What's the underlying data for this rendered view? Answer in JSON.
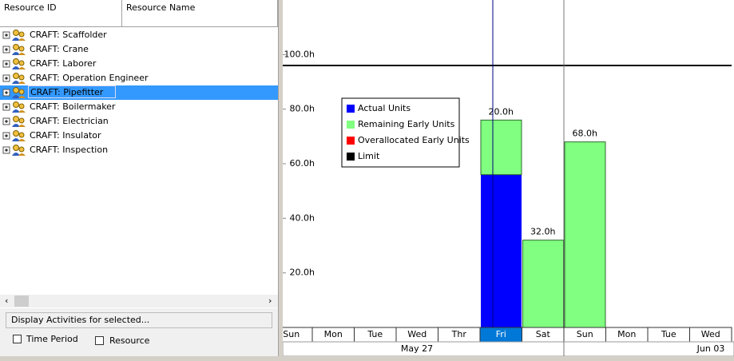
{
  "columns": [
    "Resource ID",
    "Resource Name"
  ],
  "resources": [
    "CRAFT: Scaffolder",
    "CRAFT: Crane",
    "CRAFT: Laborer",
    "CRAFT: Operation Engineer",
    "CRAFT: Pipefitter",
    "CRAFT: Boilermaker",
    "CRAFT: Electrician",
    "CRAFT: Insulator",
    "CRAFT: Inspection"
  ],
  "selected_resource": 4,
  "footer": {
    "title": "Display Activities for selected...",
    "options": [
      "Time Period",
      "Resource"
    ]
  },
  "chart_data": {
    "type": "bar",
    "stacked": true,
    "categories": [
      "Sun",
      "Mon",
      "Tue",
      "Wed",
      "Thr",
      "Fri",
      "Sat",
      "Sun",
      "Mon",
      "Tue",
      "Wed"
    ],
    "selected_category": 5,
    "timescale": [
      "May 27",
      "Jun 03"
    ],
    "ylim": [
      0,
      120
    ],
    "yticks": [
      {
        "value": 20,
        "label": "20.0h"
      },
      {
        "value": 40,
        "label": "40.0h"
      },
      {
        "value": 60,
        "label": "60.0h"
      },
      {
        "value": 80,
        "label": "80.0h"
      },
      {
        "value": 100,
        "label": "100.0h"
      }
    ],
    "series": [
      {
        "name": "Actual Units",
        "color": "#0000ff",
        "values": [
          null,
          null,
          null,
          null,
          null,
          56,
          null,
          null,
          null,
          null,
          null
        ]
      },
      {
        "name": "Remaining Early Units",
        "color": "#80ff80",
        "values": [
          null,
          null,
          null,
          null,
          null,
          20,
          32,
          68,
          null,
          null,
          null
        ],
        "value_labels": [
          null,
          null,
          null,
          null,
          null,
          "20.0h",
          "32.0h",
          "68.0h",
          null,
          null,
          null
        ]
      },
      {
        "name": "Overallocated Early Units",
        "color": "#ff0000",
        "values": [
          null,
          null,
          null,
          null,
          null,
          null,
          null,
          null,
          null,
          null,
          null
        ]
      },
      {
        "name": "Limit",
        "color": "#000000",
        "type": "line",
        "values": [
          96,
          96,
          96,
          96,
          96,
          96,
          96,
          96,
          96,
          96,
          96
        ]
      }
    ]
  }
}
